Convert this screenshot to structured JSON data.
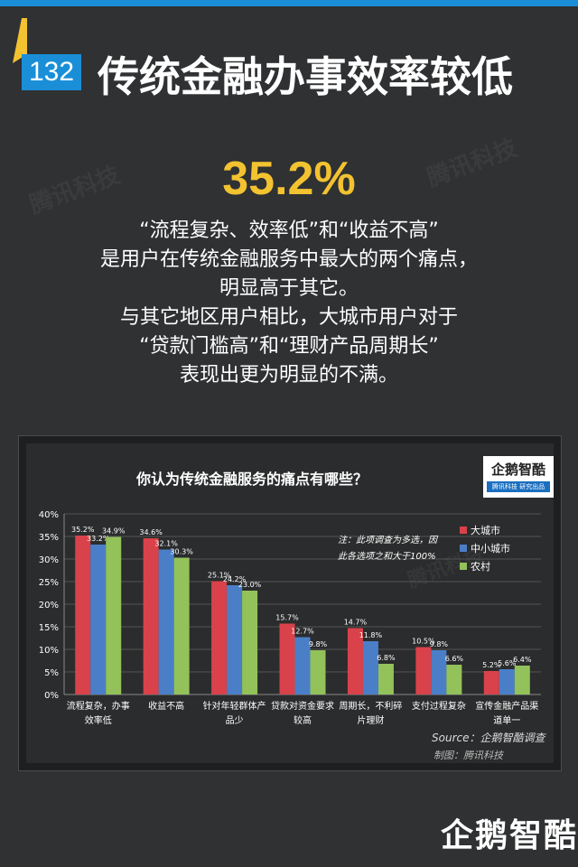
{
  "header": {
    "number": "132",
    "title": "传统金融办事效率较低"
  },
  "watermark": "腾讯科技",
  "highlight": "35.2%",
  "body_lines": [
    "“流程复杂、效率低”和“收益不高”",
    "是用户在传统金融服务中最大的两个痛点，",
    "明显高于其它。",
    "与其它地区用户相比，大城市用户对于",
    "“贷款门槛高”和“理财产品周期长”",
    "表现出更为明显的不满。"
  ],
  "brand": {
    "name": "企鹅智酷",
    "tagline": "腾讯科技 研究出品"
  },
  "source": "Source：企鹅智酷调查",
  "maker": "制图：腾讯科技",
  "footer_brand": "企鹅智酷",
  "colors": {
    "accent": "#1a8fd8",
    "highlight": "#f2c230",
    "series": [
      "#d9424a",
      "#4a7fc8",
      "#93c25a"
    ]
  },
  "chart_data": {
    "type": "bar",
    "title": "你认为传统金融服务的痛点有哪些？",
    "note_lines": [
      "注：此项调查为多选，因",
      "此各选项之和大于100%"
    ],
    "categories": [
      [
        "流程复杂，办事",
        "效率低"
      ],
      [
        "收益不高"
      ],
      [
        "针对年轻群体产",
        "品少"
      ],
      [
        "贷款对资金要求",
        "较高"
      ],
      [
        "周期长，不利碎",
        "片理财"
      ],
      [
        "支付过程复杂"
      ],
      [
        "宣传金融产品渠",
        "道单一"
      ]
    ],
    "series": [
      {
        "name": "大城市",
        "values": [
          35.2,
          34.6,
          25.1,
          15.7,
          14.7,
          10.5,
          5.2
        ]
      },
      {
        "name": "中小城市",
        "values": [
          33.2,
          32.1,
          24.2,
          12.7,
          11.8,
          9.8,
          5.6
        ]
      },
      {
        "name": "农村",
        "values": [
          34.9,
          30.3,
          23.0,
          9.8,
          6.8,
          6.6,
          6.4
        ]
      }
    ],
    "ylim": [
      0,
      40
    ],
    "yticks": [
      "0%",
      "5%",
      "10%",
      "15%",
      "20%",
      "25%",
      "30%",
      "35%",
      "40%"
    ],
    "value_suffix": "%",
    "legend_position": "top-right",
    "grid": true
  }
}
